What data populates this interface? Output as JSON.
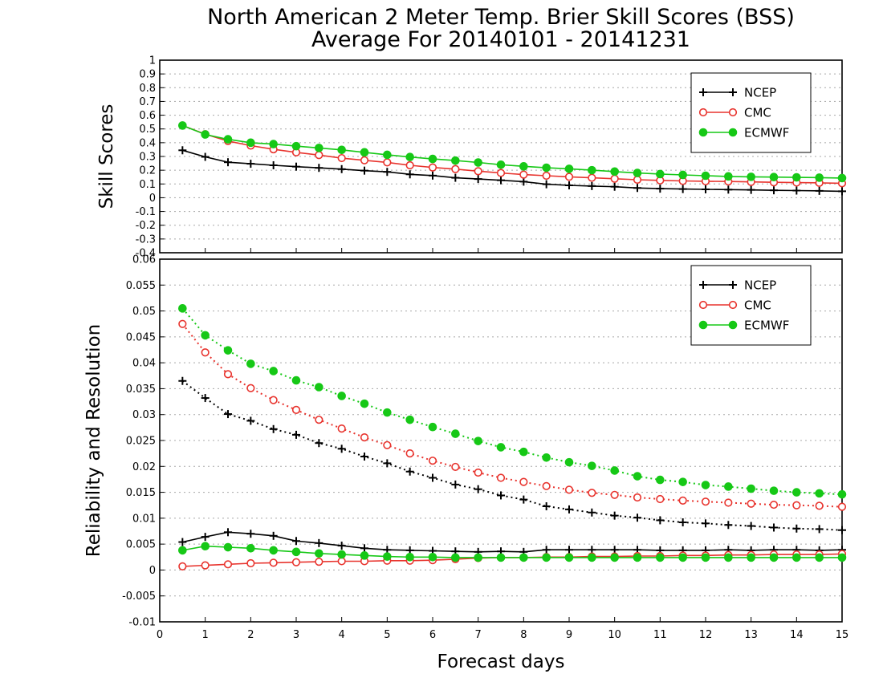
{
  "title_line1": "North American 2 Meter Temp. Brier Skill Scores (BSS)",
  "title_line2": "Average For 20140101 - 20141231",
  "xlabel": "Forecast days",
  "colors": {
    "NCEP": "#000000",
    "CMC": "#e8342e",
    "ECMWF": "#16c816",
    "grid": "#a8a8a8"
  },
  "chart_data": [
    {
      "type": "line",
      "panel": "top",
      "ylabel": "Skill Scores",
      "xlim": [
        0,
        15
      ],
      "ylim": [
        -0.4,
        1
      ],
      "x_ticks": [
        0,
        1,
        2,
        3,
        4,
        5,
        6,
        7,
        8,
        9,
        10,
        11,
        12,
        13,
        14,
        15
      ],
      "y_ticks": [
        "-0.4",
        "-0.3",
        "-0.2",
        "-0.1",
        "0",
        "0.1",
        "0.2",
        "0.3",
        "0.4",
        "0.5",
        "0.6",
        "0.7",
        "0.8",
        "0.9",
        "1"
      ],
      "grid": true,
      "legend": {
        "position": "top-right",
        "entries": [
          "NCEP",
          "CMC",
          "ECMWF"
        ]
      },
      "x": [
        0.5,
        1,
        1.5,
        2,
        2.5,
        3,
        3.5,
        4,
        4.5,
        5,
        5.5,
        6,
        6.5,
        7,
        7.5,
        8,
        8.5,
        9,
        9.5,
        10,
        10.5,
        11,
        11.5,
        12,
        12.5,
        13,
        13.5,
        14,
        14.5,
        15
      ],
      "series": [
        {
          "name": "NCEP",
          "marker": "plus",
          "linestyle": "solid",
          "values": [
            0.345,
            0.297,
            0.258,
            0.247,
            0.236,
            0.226,
            0.217,
            0.208,
            0.197,
            0.188,
            0.17,
            0.161,
            0.145,
            0.136,
            0.127,
            0.117,
            0.098,
            0.09,
            0.085,
            0.08,
            0.071,
            0.066,
            0.063,
            0.061,
            0.059,
            0.057,
            0.054,
            0.052,
            0.05,
            0.047
          ]
        },
        {
          "name": "CMC",
          "marker": "open-circle",
          "linestyle": "solid",
          "values": [
            0.525,
            0.462,
            0.412,
            0.379,
            0.352,
            0.33,
            0.31,
            0.288,
            0.272,
            0.257,
            0.236,
            0.22,
            0.208,
            0.193,
            0.18,
            0.168,
            0.16,
            0.152,
            0.145,
            0.138,
            0.131,
            0.126,
            0.122,
            0.12,
            0.118,
            0.115,
            0.112,
            0.11,
            0.108,
            0.105
          ]
        },
        {
          "name": "ECMWF",
          "marker": "filled-circle",
          "linestyle": "solid",
          "values": [
            0.525,
            0.46,
            0.425,
            0.4,
            0.39,
            0.375,
            0.362,
            0.348,
            0.33,
            0.312,
            0.296,
            0.282,
            0.27,
            0.256,
            0.24,
            0.228,
            0.218,
            0.21,
            0.2,
            0.19,
            0.18,
            0.172,
            0.166,
            0.16,
            0.155,
            0.152,
            0.15,
            0.148,
            0.146,
            0.143
          ]
        }
      ]
    },
    {
      "type": "line",
      "panel": "bottom",
      "ylabel": "Reliability and Resolution",
      "xlim": [
        0,
        15
      ],
      "ylim": [
        -0.01,
        0.06
      ],
      "x_ticks": [
        0,
        1,
        2,
        3,
        4,
        5,
        6,
        7,
        8,
        9,
        10,
        11,
        12,
        13,
        14,
        15
      ],
      "y_ticks": [
        "-0.01",
        "-0.005",
        "0",
        "0.005",
        "0.01",
        "0.015",
        "0.02",
        "0.025",
        "0.03",
        "0.035",
        "0.04",
        "0.045",
        "0.05",
        "0.055",
        "0.06"
      ],
      "grid": true,
      "legend": {
        "position": "top-right",
        "entries": [
          "NCEP",
          "CMC",
          "ECMWF"
        ]
      },
      "x": [
        0.5,
        1,
        1.5,
        2,
        2.5,
        3,
        3.5,
        4,
        4.5,
        5,
        5.5,
        6,
        6.5,
        7,
        7.5,
        8,
        8.5,
        9,
        9.5,
        10,
        10.5,
        11,
        11.5,
        12,
        12.5,
        13,
        13.5,
        14,
        14.5,
        15
      ],
      "series": [
        {
          "name": "NCEP",
          "group": "resolution",
          "marker": "plus",
          "linestyle": "dotted",
          "values": [
            0.0365,
            0.0332,
            0.0301,
            0.0288,
            0.0272,
            0.0261,
            0.0245,
            0.0234,
            0.0219,
            0.0206,
            0.019,
            0.0178,
            0.0165,
            0.0156,
            0.0144,
            0.0136,
            0.0123,
            0.0117,
            0.0111,
            0.0105,
            0.0101,
            0.0096,
            0.0092,
            0.009,
            0.0087,
            0.0085,
            0.0082,
            0.008,
            0.0079,
            0.0077
          ]
        },
        {
          "name": "CMC",
          "group": "resolution",
          "marker": "open-circle",
          "linestyle": "dotted",
          "values": [
            0.0475,
            0.042,
            0.0378,
            0.0351,
            0.0328,
            0.0309,
            0.029,
            0.0273,
            0.0256,
            0.0241,
            0.0225,
            0.0211,
            0.0199,
            0.0188,
            0.0178,
            0.017,
            0.0162,
            0.0155,
            0.0149,
            0.0145,
            0.014,
            0.0137,
            0.0134,
            0.0132,
            0.013,
            0.0128,
            0.0126,
            0.0125,
            0.0124,
            0.0122
          ]
        },
        {
          "name": "ECMWF",
          "group": "resolution",
          "marker": "filled-circle",
          "linestyle": "dotted",
          "values": [
            0.0505,
            0.0453,
            0.0424,
            0.0398,
            0.0384,
            0.0366,
            0.0353,
            0.0336,
            0.0321,
            0.0304,
            0.029,
            0.0276,
            0.0263,
            0.0249,
            0.0237,
            0.0228,
            0.0217,
            0.0208,
            0.0201,
            0.0192,
            0.0181,
            0.0174,
            0.017,
            0.0164,
            0.0161,
            0.0157,
            0.0153,
            0.015,
            0.0148,
            0.0146
          ]
        },
        {
          "name": "NCEP",
          "group": "reliability",
          "marker": "plus",
          "linestyle": "solid",
          "values": [
            0.0054,
            0.0064,
            0.0073,
            0.007,
            0.0066,
            0.0056,
            0.0052,
            0.0047,
            0.0042,
            0.0039,
            0.0038,
            0.0037,
            0.0036,
            0.0035,
            0.0036,
            0.0035,
            0.0039,
            0.0039,
            0.0039,
            0.0039,
            0.0039,
            0.0038,
            0.0038,
            0.0038,
            0.0039,
            0.0038,
            0.0039,
            0.0039,
            0.0038,
            0.0039
          ]
        },
        {
          "name": "CMC",
          "group": "reliability",
          "marker": "open-circle",
          "linestyle": "solid",
          "values": [
            0.0007,
            0.0009,
            0.0011,
            0.0013,
            0.0014,
            0.0015,
            0.0016,
            0.0017,
            0.0017,
            0.0018,
            0.0018,
            0.0019,
            0.0021,
            0.0023,
            0.0024,
            0.0024,
            0.0025,
            0.0025,
            0.0026,
            0.0026,
            0.0027,
            0.0027,
            0.0028,
            0.0028,
            0.0029,
            0.0029,
            0.003,
            0.003,
            0.003,
            0.0031
          ]
        },
        {
          "name": "ECMWF",
          "group": "reliability",
          "marker": "filled-circle",
          "linestyle": "solid",
          "values": [
            0.0038,
            0.0046,
            0.0044,
            0.0042,
            0.0038,
            0.0035,
            0.0032,
            0.003,
            0.0028,
            0.0026,
            0.0025,
            0.0025,
            0.0024,
            0.0024,
            0.0024,
            0.0024,
            0.0024,
            0.0024,
            0.0024,
            0.0024,
            0.0024,
            0.0024,
            0.0024,
            0.0024,
            0.0024,
            0.0024,
            0.0024,
            0.0024,
            0.0024,
            0.0024
          ]
        }
      ]
    }
  ]
}
